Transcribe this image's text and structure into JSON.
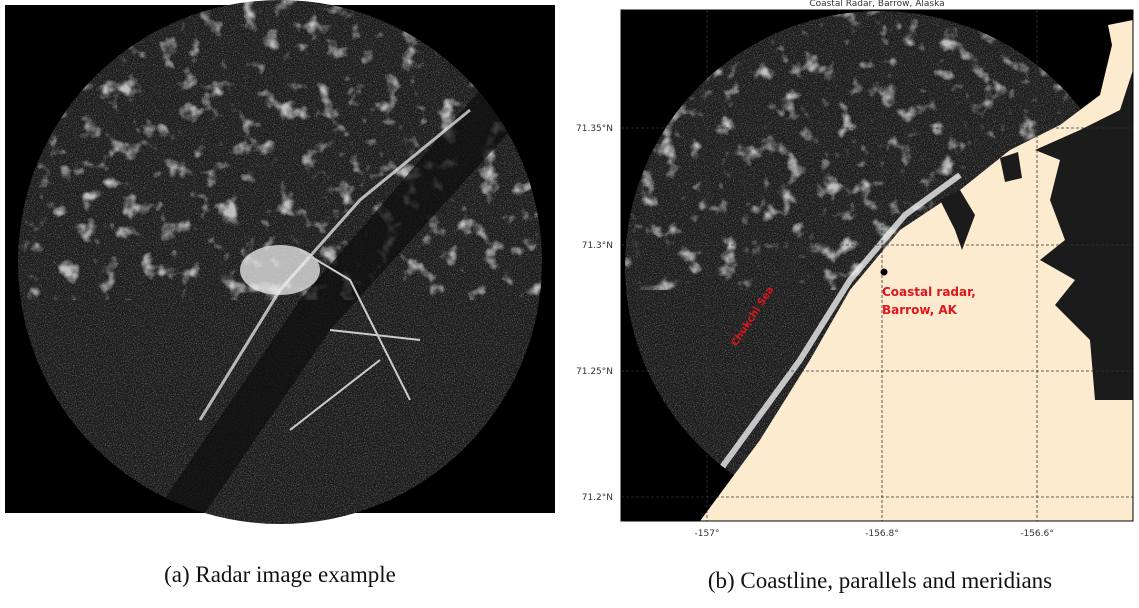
{
  "figure": {
    "panels": [
      {
        "caption": "(a) Radar image example"
      },
      {
        "caption": "(b) Coastline, parallels and meridians",
        "map": {
          "title": "Coastal Radar, Barrow, Alaska",
          "lat_labels": [
            "71.35°N",
            "71.3°N",
            "71.25°N",
            "71.2°N"
          ],
          "lon_labels": [
            "-157°",
            "-156.8°",
            "-156.6°"
          ],
          "sea_label": "Chukchi Sea",
          "station_label": [
            "Coastal radar,",
            "Barrow, AK"
          ]
        }
      }
    ]
  }
}
